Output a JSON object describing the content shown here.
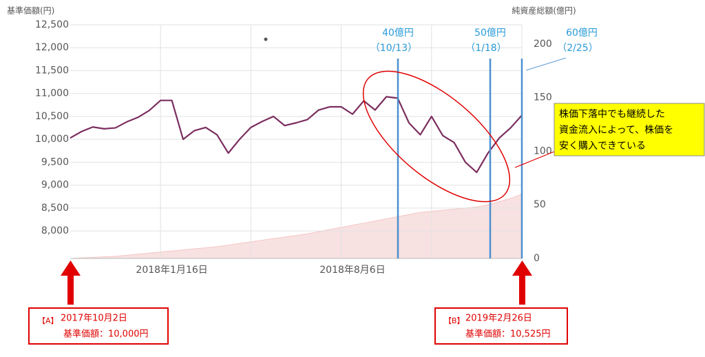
{
  "chart_data": {
    "type": "line",
    "y_label": "基準価額(円)",
    "y2_label": "純資産総額(億円)",
    "categories": [
      null,
      null,
      null,
      null,
      null,
      null,
      null,
      null,
      null,
      "2018年1月16日",
      null,
      null,
      null,
      null,
      null,
      null,
      null,
      null,
      null,
      null,
      null,
      null,
      null,
      null,
      null,
      "2018年8月6日",
      null,
      null,
      null,
      null,
      null,
      null,
      null,
      null,
      null,
      null,
      null,
      null,
      null,
      null,
      null
    ],
    "series": [
      {
        "name": "基準価額",
        "color": "#7b2d5e",
        "axis": "y",
        "values": [
          10030,
          10170,
          10270,
          10230,
          10250,
          10380,
          10480,
          10630,
          10850,
          10850,
          10000,
          10190,
          10260,
          10100,
          9700,
          10000,
          10260,
          10390,
          10500,
          10300,
          10360,
          10430,
          10640,
          10710,
          10710,
          10550,
          10840,
          10640,
          10930,
          10900,
          10360,
          10100,
          10500,
          10080,
          9930,
          9500,
          9280,
          9700,
          10030,
          10250,
          10525
        ]
      },
      {
        "name": "純資産総額",
        "color": "#f8e1e1",
        "axis": "y2",
        "values": [
          0,
          0.5,
          1,
          1.5,
          2,
          3,
          4,
          5,
          6,
          7,
          8,
          9,
          10,
          11,
          12.5,
          14,
          15.5,
          17,
          18.5,
          20,
          21.5,
          23,
          25,
          27,
          29,
          31,
          33,
          35,
          37,
          39,
          41,
          43,
          44,
          45,
          46,
          47,
          48,
          50,
          53,
          56,
          60
        ]
      }
    ],
    "ylim": [
      7400,
      12500
    ],
    "yticks": [
      {
        "value": 8000,
        "label": "8,000"
      },
      {
        "value": 8500,
        "label": "8,500"
      },
      {
        "value": 9000,
        "label": "9,000"
      },
      {
        "value": 9500,
        "label": "9,500"
      },
      {
        "value": 10000,
        "label": "10,000"
      },
      {
        "value": 10500,
        "label": "10,500"
      },
      {
        "value": 11000,
        "label": "11,000"
      },
      {
        "value": 11500,
        "label": "11,500"
      },
      {
        "value": 12000,
        "label": "12,000"
      },
      {
        "value": 12500,
        "label": "12,500"
      }
    ],
    "y2lim": [
      0,
      218
    ],
    "y2ticks": [
      0,
      50,
      100,
      150,
      200
    ],
    "grid": true,
    "markers": [
      {
        "amount": "40億円",
        "date": "（10/13）"
      },
      {
        "amount": "50億円",
        "date": "（1/18）"
      },
      {
        "amount": "60億円",
        "date": "（2/25）"
      }
    ],
    "callout": [
      "株価下落中でも継続した",
      "資金流入によって、株価を",
      "安く購入できている"
    ],
    "point_a": {
      "tag": "【A】",
      "date": "2017年10月2日",
      "nav": "基準価額：10,000円"
    },
    "point_b": {
      "tag": "【B】",
      "date": "2019年2月26日",
      "nav": "基準価額：10,525円"
    }
  }
}
